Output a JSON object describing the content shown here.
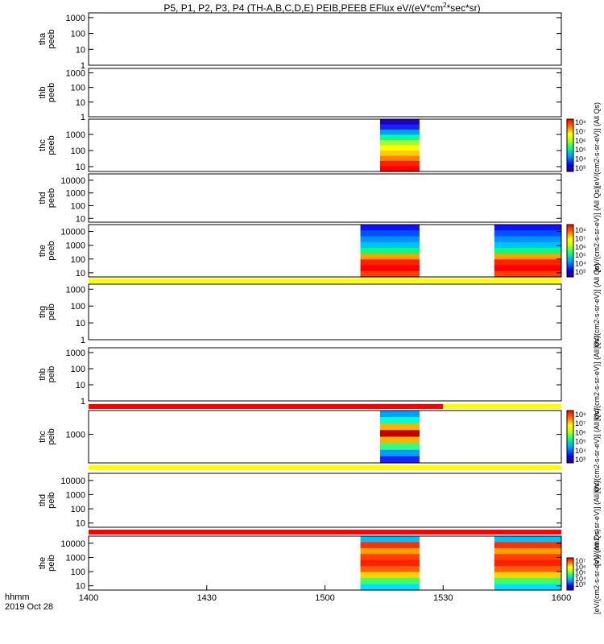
{
  "chart_data": {
    "type": "heatmap",
    "title": "P5, P1, P2, P3, P4 (TH-A,B,C,D,E) PEIB,PEEB EFlux eV/(eV*cm²*sec*sr)",
    "title_parts": {
      "main": "P5, P1, P2, P3, P4 (TH-A,B,C,D,E) PEIB,PEEB EFlux eV/(eV*cm",
      "sup": "2",
      "tail": "*sec*sr)"
    },
    "x_axis": {
      "range_hhmm": [
        "1400",
        "1600"
      ],
      "ticks": [
        "1400",
        "1430",
        "1500",
        "1530",
        "1600"
      ],
      "label_line1": "hhmm",
      "label_line2": "2019 Oct 28"
    },
    "colorscale": "rainbow (blue-cyan-green-yellow-red)",
    "panels": [
      {
        "id": "tha_peeb",
        "label": [
          "tha",
          "peeb"
        ],
        "yticks": [
          "1000",
          "100",
          "10",
          "1"
        ],
        "ylog_range": [
          0,
          3.3
        ],
        "blocks": []
      },
      {
        "id": "thb_peeb",
        "label": [
          "thb",
          "peeb"
        ],
        "yticks": [
          "1000",
          "100",
          "10",
          "1"
        ],
        "ylog_range": [
          0,
          3.3
        ],
        "blocks": []
      },
      {
        "id": "thc_peeb",
        "label": [
          "thc",
          "peeb"
        ],
        "yticks": [
          "1000",
          "100",
          "10"
        ],
        "ylog_range": [
          0.7,
          3.95
        ],
        "blocks": [
          {
            "t_start": "1514",
            "t_end": "1524",
            "profile": "electron_dense"
          }
        ],
        "colorbar": {
          "label": "[eV/(cm2-s-sr-eV)] (All Qs)",
          "ticks": [
            "10³",
            "10⁴",
            "10⁵",
            "10⁶",
            "10⁷",
            "10⁸"
          ]
        }
      },
      {
        "id": "thd_peeb",
        "label": [
          "thd",
          "peeb"
        ],
        "yticks": [
          "10000",
          "1000",
          "100",
          "10"
        ],
        "ylog_range": [
          0.7,
          4.5
        ],
        "blocks": []
      },
      {
        "id": "the_peeb",
        "label": [
          "the",
          "peeb"
        ],
        "yticks": [
          "10000",
          "1000",
          "100",
          "10"
        ],
        "ylog_range": [
          0.7,
          4.5
        ],
        "blocks": [
          {
            "t_start": "1509",
            "t_end": "1524",
            "profile": "electron_sheath"
          },
          {
            "t_start": "1543",
            "t_end": "1600",
            "profile": "electron_sheath"
          }
        ],
        "colorbar": {
          "label": "[eV/(cm2-s-sr-eV)] (All Qs)",
          "ticks": [
            "10³",
            "10⁴",
            "10⁵",
            "10⁶",
            "10⁷",
            "10⁸"
          ]
        },
        "bar_below": "yellow"
      },
      {
        "id": "thg_peib",
        "label": [
          "thg",
          "peib"
        ],
        "yticks": [
          "1000",
          "100",
          "10",
          "1"
        ],
        "ylog_range": [
          0,
          3.3
        ],
        "blocks": []
      },
      {
        "id": "thb_peib",
        "label": [
          "thb",
          "peib"
        ],
        "yticks": [
          "1000",
          "100",
          "10",
          "1"
        ],
        "ylog_range": [
          0,
          3.3
        ],
        "blocks": [],
        "bar_below": "red_then_yellow"
      },
      {
        "id": "thc_peib",
        "label": [
          "thc",
          "peib"
        ],
        "yticks": [
          "1000"
        ],
        "ylog_range": [
          2.4,
          3.5
        ],
        "blocks": [
          {
            "t_start": "1514",
            "t_end": "1524",
            "profile": "ion_dense"
          }
        ],
        "colorbar": {
          "label": "[eV/(cm2-s-sr-eV)] (All Qs)",
          "ticks": [
            "10³",
            "10⁴",
            "10⁵",
            "10⁶",
            "10⁷",
            "10⁸"
          ]
        },
        "bar_below": "yellow"
      },
      {
        "id": "thd_peib",
        "label": [
          "thd",
          "peib"
        ],
        "yticks": [
          "10000",
          "1000",
          "100",
          "10"
        ],
        "ylog_range": [
          0.7,
          4.5
        ],
        "blocks": [],
        "bar_below": "red"
      },
      {
        "id": "the_peib",
        "label": [
          "the",
          "peib"
        ],
        "yticks": [
          "10000",
          "1000",
          "100",
          "10"
        ],
        "ylog_range": [
          0.7,
          4.5
        ],
        "blocks": [
          {
            "t_start": "1509",
            "t_end": "1524",
            "profile": "ion_hot"
          },
          {
            "t_start": "1543",
            "t_end": "1600",
            "profile": "ion_hot"
          }
        ],
        "colorbar": {
          "label": "[eV/(cm2-s-sr-eV)] (All Qs)",
          "ticks": [
            "10³",
            "10⁴",
            "10⁵",
            "10⁶",
            "10⁷"
          ]
        }
      }
    ]
  }
}
